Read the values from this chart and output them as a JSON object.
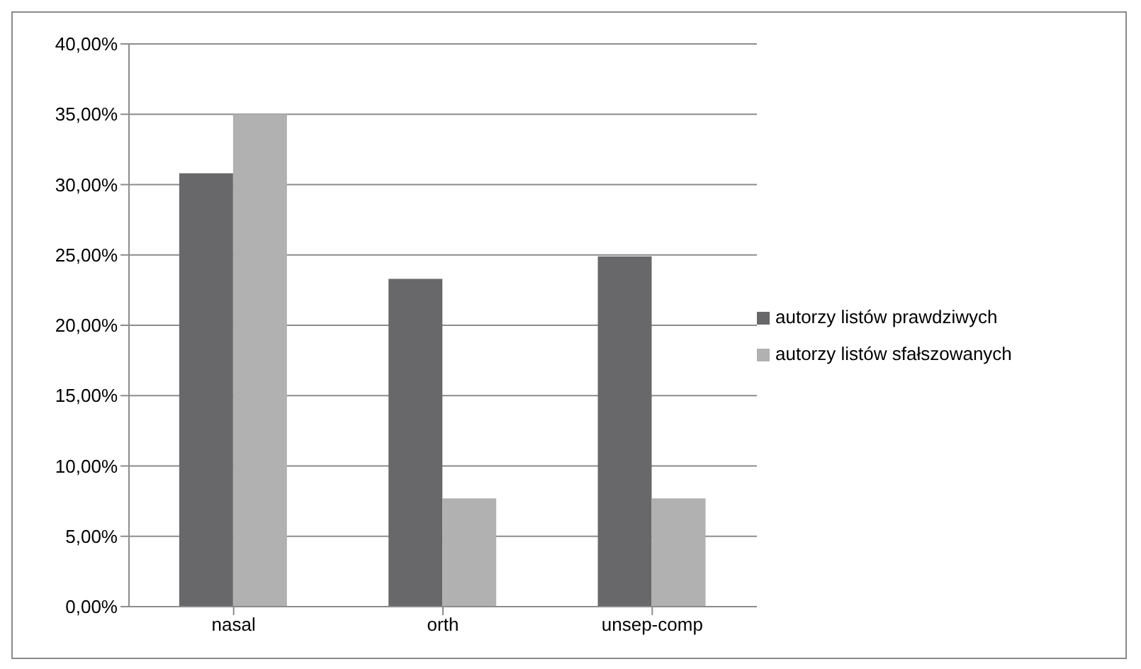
{
  "chart_data": {
    "type": "bar",
    "categories": [
      "nasal",
      "orth",
      "unsep-comp"
    ],
    "series": [
      {
        "name": "autorzy listów prawdziwych",
        "color": "#68686a",
        "values": [
          30.8,
          23.3,
          24.9
        ]
      },
      {
        "name": "autorzy listów sfałszowanych",
        "color": "#b1b1b1",
        "values": [
          35.0,
          7.7,
          7.7
        ]
      }
    ],
    "ylim": [
      0,
      40
    ],
    "yticks": [
      {
        "value": 0,
        "label": "0,00%"
      },
      {
        "value": 5,
        "label": "5,00%"
      },
      {
        "value": 10,
        "label": "10,00%"
      },
      {
        "value": 15,
        "label": "15,00%"
      },
      {
        "value": 20,
        "label": "20,00%"
      },
      {
        "value": 25,
        "label": "25,00%"
      },
      {
        "value": 30,
        "label": "30,00%"
      },
      {
        "value": 35,
        "label": "35,00%"
      },
      {
        "value": 40,
        "label": "40,00%"
      }
    ],
    "grid": "y",
    "legend": "right"
  }
}
